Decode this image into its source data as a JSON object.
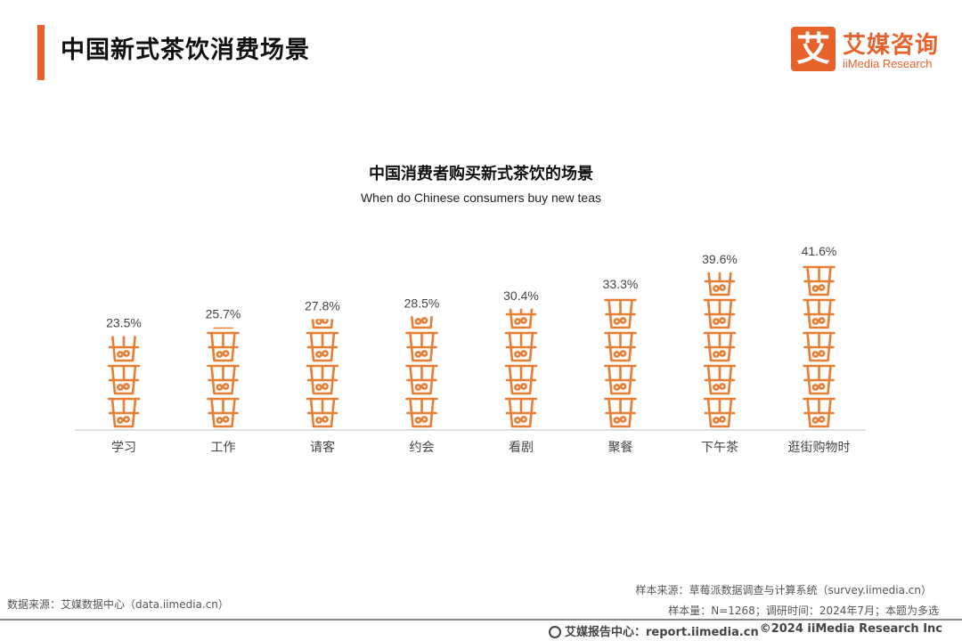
{
  "header": {
    "title": "中国新式茶饮消费场景",
    "logo_mark": "艾",
    "logo_cn": "艾媒咨询",
    "logo_en": "iiMedia Research"
  },
  "colors": {
    "accent": "#e8632b",
    "icon": "#e87d34",
    "axis": "#d6d6d6"
  },
  "chart_data": {
    "type": "bar",
    "title": "中国消费者购买新式茶饮的场景",
    "subtitle": "When do Chinese consumers buy new teas",
    "categories": [
      "学习",
      "工作",
      "请客",
      "约会",
      "看剧",
      "聚餐",
      "下午茶",
      "逛街购物时"
    ],
    "values": [
      23.5,
      25.7,
      27.8,
      28.5,
      30.4,
      33.3,
      39.6,
      41.6
    ],
    "labels": [
      "23.5%",
      "25.7%",
      "27.8%",
      "28.5%",
      "30.4%",
      "33.3%",
      "39.6%",
      "41.6%"
    ],
    "unit": "%",
    "icon": "bubble-tea-cup-icon",
    "ylim": [
      0,
      41.6
    ],
    "grid": false,
    "legend": "none"
  },
  "footer": {
    "source_left": "数据来源：艾媒数据中心（data.iimedia.cn）",
    "sample_source": "样本来源：草莓派数据调查与计算系统（survey.iimedia.cn）",
    "sample_info": "样本量：N=1268；调研时间：2024年7月；本题为多选",
    "report": "艾媒报告中心：report.iimedia.cn",
    "copyright": "©2024  iiMedia Research  Inc"
  }
}
